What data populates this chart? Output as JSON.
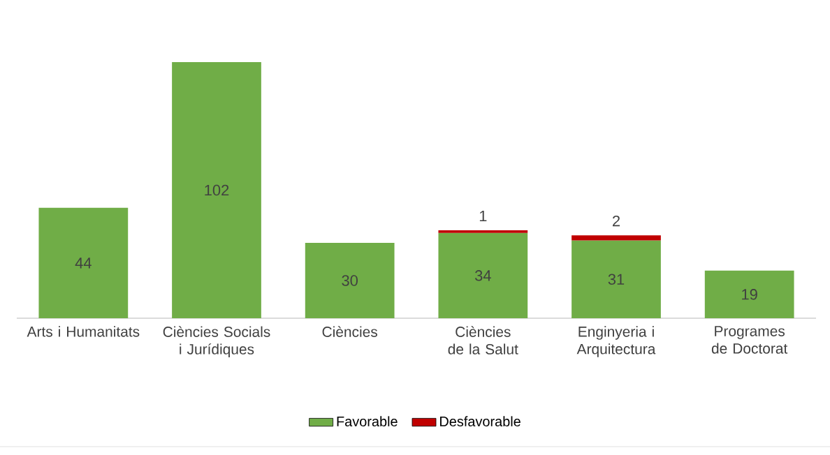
{
  "chart_data": {
    "type": "bar",
    "stacked": true,
    "categories": [
      "Arts i Humanitats",
      "Ciències Socials i Jurídiques",
      "Ciències",
      "Ciències de la Salut",
      "Enginyeria i Arquitectura",
      "Programes de Doctorat"
    ],
    "series": [
      {
        "name": "Favorable",
        "color": "#70ad47",
        "values": [
          44,
          102,
          30,
          34,
          31,
          19
        ]
      },
      {
        "name": "Desfavorable",
        "color": "#c00000",
        "values": [
          null,
          null,
          null,
          1,
          2,
          null
        ]
      }
    ],
    "data_labels": true,
    "legend": "bottom"
  }
}
